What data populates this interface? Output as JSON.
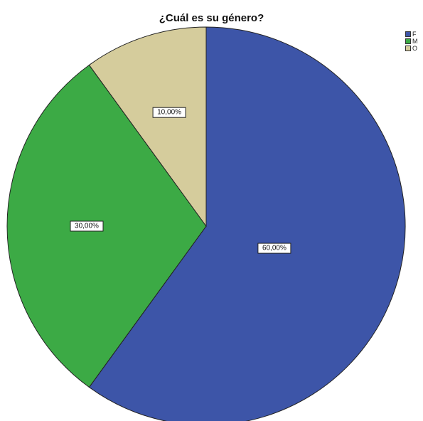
{
  "chart_data": {
    "type": "pie",
    "title": "¿Cuál es su género?",
    "slices": [
      {
        "label": "F",
        "value": 60,
        "display": "60,00%",
        "color": "#3d55a8"
      },
      {
        "label": "M",
        "value": 30,
        "display": "30,00%",
        "color": "#3caa45"
      },
      {
        "label": "O",
        "value": 10,
        "display": "10,00%",
        "color": "#d5cc9c"
      }
    ],
    "start_angle_deg": 0,
    "direction": "clockwise",
    "legend_position": "top-right"
  }
}
